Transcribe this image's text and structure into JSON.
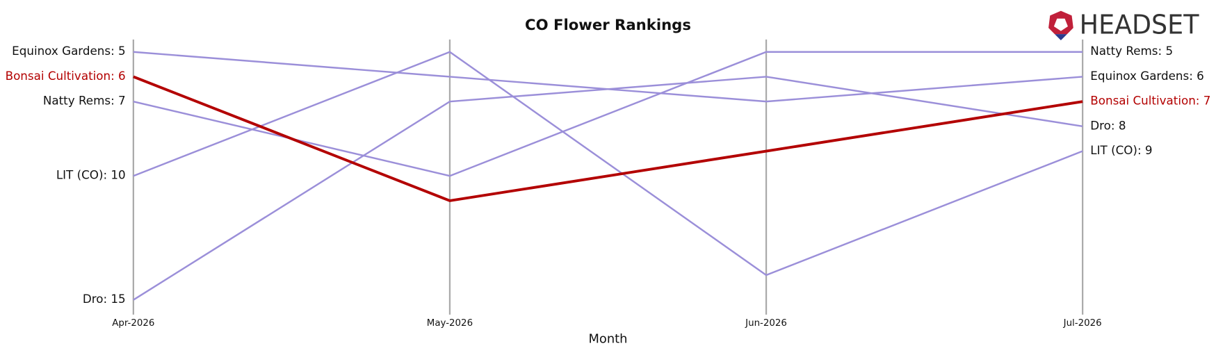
{
  "chart_data": {
    "type": "bump",
    "title": "CO Flower Rankings",
    "x_label": "Month",
    "logo": "HEADSET",
    "categories": [
      "Apr-2026",
      "May-2026",
      "Jun-2026",
      "Jul-2026"
    ],
    "ylim": [
      15.5,
      4.5
    ],
    "series": [
      {
        "name": "Equinox Gardens",
        "color": "#9b8fd9",
        "values": [
          5,
          6,
          7,
          6
        ],
        "value_labels": [
          "Equinox Gardens: 5",
          null,
          null,
          "Equinox Gardens: 6"
        ]
      },
      {
        "name": "Bonsai Cultivation",
        "color": "#b30000",
        "highlight": true,
        "values": [
          6,
          11,
          9,
          7
        ],
        "value_labels": [
          "Bonsai Cultivation: 6",
          null,
          null,
          "Bonsai Cultivation: 7"
        ]
      },
      {
        "name": "Natty Rems",
        "color": "#9b8fd9",
        "values": [
          7,
          10,
          5,
          5
        ],
        "value_labels": [
          "Natty Rems: 7",
          null,
          null,
          "Natty Rems: 5"
        ]
      },
      {
        "name": "LIT (CO)",
        "color": "#9b8fd9",
        "values": [
          10,
          5,
          14,
          9
        ],
        "value_labels": [
          "LIT (CO): 10",
          null,
          null,
          "LIT (CO): 9"
        ]
      },
      {
        "name": "Dro",
        "color": "#9b8fd9",
        "values": [
          15,
          7,
          6,
          8
        ],
        "value_labels": [
          "Dro: 15",
          null,
          null,
          "Dro: 8"
        ]
      }
    ]
  }
}
